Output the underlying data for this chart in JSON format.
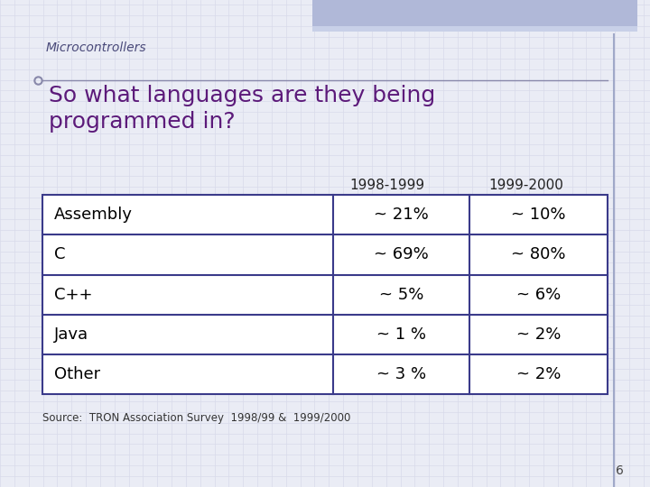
{
  "title": "Microcontrollers",
  "subtitle": "So what languages are they being\nprogrammed in?",
  "title_color": "#4a4a7a",
  "subtitle_color": "#5c1a7a",
  "background_color": "#eaecf5",
  "header_row": [
    "",
    "1998-1999",
    "1999-2000"
  ],
  "rows": [
    [
      "Assembly",
      "~ 21%",
      "~ 10%"
    ],
    [
      "C",
      "~ 69%",
      "~ 80%"
    ],
    [
      "C++",
      "~ 5%",
      "~ 6%"
    ],
    [
      "Java",
      "~ 1 %",
      "~ 2%"
    ],
    [
      "Other",
      "~ 3 %",
      "~ 2%"
    ]
  ],
  "source_text": "Source:  TRON Association Survey  1998/99 &  1999/2000",
  "page_number": "6",
  "table_border_color": "#3a3a8a",
  "table_text_color": "#000000",
  "header_text_color": "#222222",
  "table_font_size": 13,
  "header_font_size": 11,
  "title_font_size": 10,
  "subtitle_font_size": 18,
  "source_font_size": 8.5,
  "page_font_size": 10,
  "top_bar_color": "#b0b8d8",
  "top_bar2_color": "#c8d0e8",
  "right_line_color": "#a0a8c8",
  "grid_color": "#d8daea"
}
